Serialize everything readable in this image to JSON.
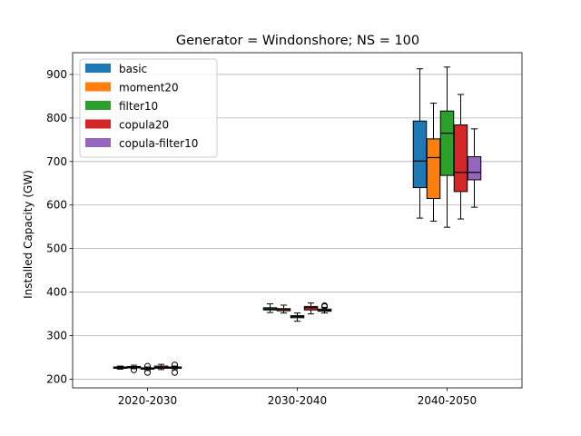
{
  "chart_data": {
    "type": "box",
    "title": "Generator = Windonshore; NS = 100",
    "xlabel": "",
    "ylabel": "Installed Capacity (GW)",
    "categories": [
      "2020-2030",
      "2030-2040",
      "2040-2050"
    ],
    "ylim": [
      180,
      950
    ],
    "yticks": [
      200,
      300,
      400,
      500,
      600,
      700,
      800,
      900
    ],
    "grid": "y",
    "legend_position": "top-left",
    "series": [
      {
        "name": "basic",
        "color": "#1f77b4",
        "boxes": [
          {
            "min": 223,
            "q1": 225,
            "median": 226,
            "q3": 228,
            "max": 230,
            "outliers": []
          },
          {
            "min": 353,
            "q1": 359,
            "median": 361,
            "q3": 364,
            "max": 373,
            "outliers": []
          },
          {
            "min": 570,
            "q1": 640,
            "median": 701,
            "q3": 793,
            "max": 913,
            "outliers": []
          }
        ]
      },
      {
        "name": "moment20",
        "color": "#ff7f0e",
        "boxes": [
          {
            "min": 224,
            "q1": 226,
            "median": 227,
            "q3": 229,
            "max": 232,
            "outliers": [
              221
            ]
          },
          {
            "min": 352,
            "q1": 357,
            "median": 360,
            "q3": 362,
            "max": 370,
            "outliers": []
          },
          {
            "min": 563,
            "q1": 615,
            "median": 709,
            "q3": 752,
            "max": 834,
            "outliers": []
          }
        ]
      },
      {
        "name": "filter10",
        "color": "#2ca02c",
        "boxes": [
          {
            "min": 220,
            "q1": 223,
            "median": 224,
            "q3": 226,
            "max": 228,
            "outliers": [
              215,
              230
            ]
          },
          {
            "min": 333,
            "q1": 341,
            "median": 344,
            "q3": 346,
            "max": 352,
            "outliers": []
          },
          {
            "min": 549,
            "q1": 668,
            "median": 765,
            "q3": 816,
            "max": 917,
            "outliers": []
          }
        ]
      },
      {
        "name": "copula20",
        "color": "#d62728",
        "boxes": [
          {
            "min": 222,
            "q1": 225,
            "median": 227,
            "q3": 230,
            "max": 234,
            "outliers": []
          },
          {
            "min": 350,
            "q1": 359,
            "median": 364,
            "q3": 367,
            "max": 375,
            "outliers": []
          },
          {
            "min": 568,
            "q1": 631,
            "median": 675,
            "q3": 784,
            "max": 854,
            "outliers": []
          }
        ]
      },
      {
        "name": "copula-filter10",
        "color": "#9467bd",
        "boxes": [
          {
            "min": 222,
            "q1": 225,
            "median": 226,
            "q3": 228,
            "max": 230,
            "outliers": [
              215,
              233
            ]
          },
          {
            "min": 352,
            "q1": 356,
            "median": 358,
            "q3": 361,
            "max": 365,
            "outliers": [
              367,
              369
            ]
          },
          {
            "min": 595,
            "q1": 658,
            "median": 675,
            "q3": 711,
            "max": 775,
            "outliers": []
          }
        ]
      }
    ]
  }
}
